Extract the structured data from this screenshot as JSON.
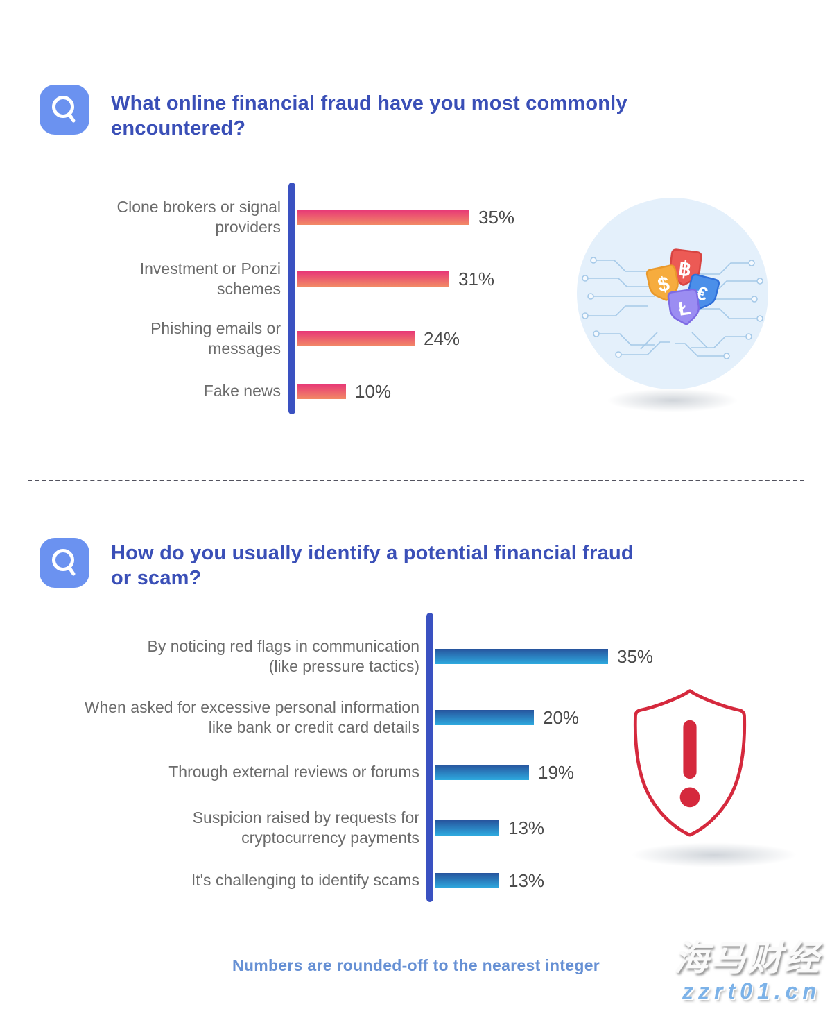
{
  "q1": {
    "title": "What online financial fraud have you most commonly\nencountered?",
    "rows": [
      {
        "label": "Clone brokers or signal\nproviders",
        "value": 35,
        "value_label": "35%"
      },
      {
        "label": "Investment or Ponzi\nschemes",
        "value": 31,
        "value_label": "31%"
      },
      {
        "label": "Phishing emails or\nmessages",
        "value": 24,
        "value_label": "24%"
      },
      {
        "label": "Fake news",
        "value": 10,
        "value_label": "10%"
      }
    ],
    "illustration": {
      "name": "currency-shields-circuit",
      "badges": [
        {
          "currency": "dollar",
          "glyph": "$"
        },
        {
          "currency": "bitcoin",
          "glyph": "฿"
        },
        {
          "currency": "euro",
          "glyph": "€"
        },
        {
          "currency": "litecoin",
          "glyph": "Ł"
        }
      ]
    }
  },
  "q2": {
    "title": "How do you usually identify a potential financial fraud\nor scam?",
    "rows": [
      {
        "label": "By noticing red flags in communication\n(like pressure tactics)",
        "value": 35,
        "value_label": "35%"
      },
      {
        "label": "When asked for excessive personal information\nlike bank or credit card details",
        "value": 20,
        "value_label": "20%"
      },
      {
        "label": "Through external reviews or forums",
        "value": 19,
        "value_label": "19%"
      },
      {
        "label": "Suspicion raised by requests for\ncryptocurrency payments",
        "value": 13,
        "value_label": "13%"
      },
      {
        "label": "It's challenging to identify scams",
        "value": 13,
        "value_label": "13%"
      }
    ],
    "illustration": {
      "name": "warning-shield",
      "glyph": "!"
    }
  },
  "footer": {
    "note": "Numbers are rounded-off to the nearest integer"
  },
  "watermark": {
    "line1": "海马财经",
    "line2": "zzrt01.cn"
  },
  "colors": {
    "title_indigo": "#3A4FB7",
    "axis_indigo": "#3A51C1",
    "q_icon_blue": "#6B92F0",
    "bar1_gradient_top": "#E73677",
    "bar1_gradient_bottom": "#F28A66",
    "bar2_gradient_top": "#27549E",
    "bar2_gradient_bottom": "#2EAADF",
    "label_gray": "#6B6B6B",
    "value_gray": "#4A4A4A",
    "footer_blue": "#6690D4",
    "shield_red": "#D5293D",
    "circle_bg": "#E4F0FB",
    "circuit_blue": "#A5C9E8"
  },
  "chart_data": [
    {
      "type": "bar",
      "orientation": "horizontal",
      "title": "What online financial fraud have you most commonly encountered?",
      "categories": [
        "Clone brokers or signal providers",
        "Investment or Ponzi schemes",
        "Phishing emails or messages",
        "Fake news"
      ],
      "values": [
        35,
        31,
        24,
        10
      ],
      "unit": "%",
      "xlabel": "",
      "ylabel": "",
      "xlim": [
        0,
        40
      ],
      "grid": false,
      "legend": "none",
      "bar_colors": [
        "#E73677",
        "#F28A66"
      ]
    },
    {
      "type": "bar",
      "orientation": "horizontal",
      "title": "How do you usually identify a potential financial fraud or scam?",
      "categories": [
        "By noticing red flags in communication (like pressure tactics)",
        "When asked for excessive personal information like bank or credit card details",
        "Through external reviews or forums",
        "Suspicion raised by requests for cryptocurrency payments",
        "It's challenging to identify scams"
      ],
      "values": [
        35,
        20,
        19,
        13,
        13
      ],
      "unit": "%",
      "xlabel": "",
      "ylabel": "",
      "xlim": [
        0,
        40
      ],
      "grid": false,
      "legend": "none",
      "bar_colors": [
        "#27549E",
        "#2EAADF"
      ]
    }
  ]
}
